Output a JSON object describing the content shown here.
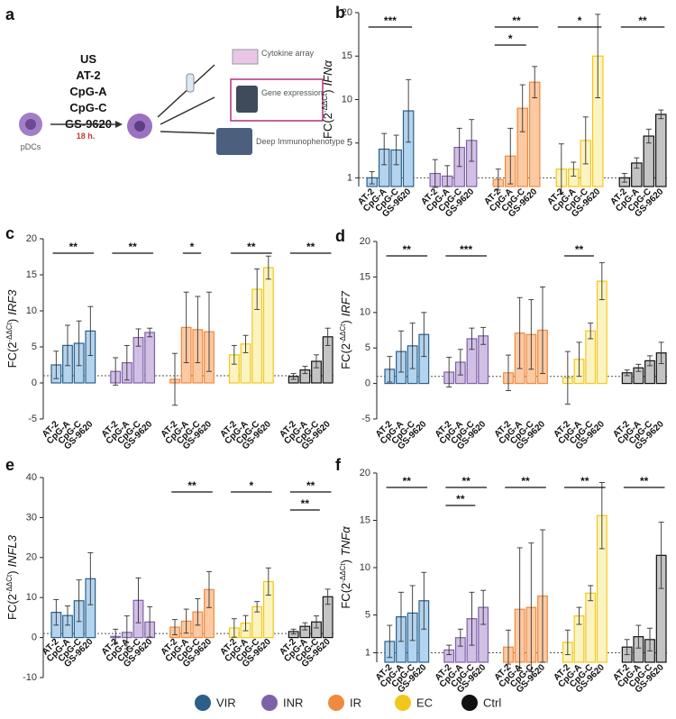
{
  "diagram": {
    "panel": "a",
    "treatments": [
      "US",
      "AT-2",
      "CpG-A",
      "CpG-C",
      "GS-9620"
    ],
    "cell": "pDCs",
    "time": "18 h.",
    "outputs": [
      "Cytokine array",
      "Gene expression",
      "Deep Immunophenotype"
    ]
  },
  "groups": [
    {
      "name": "VIR",
      "color": "#2c5f8a",
      "fill": "#b3d4ee"
    },
    {
      "name": "INR",
      "color": "#7e62a8",
      "fill": "#d2bfe5"
    },
    {
      "name": "IR",
      "color": "#ef8a3e",
      "fill": "#fbcaa3"
    },
    {
      "name": "EC",
      "color": "#f2c71c",
      "fill": "#fbf4c2"
    },
    {
      "name": "Ctrl",
      "color": "#111111",
      "fill": "#c4c4c4"
    }
  ],
  "chart_data": [
    {
      "type": "bar",
      "panel": "b",
      "ylabel": {
        "base": "FC(2",
        "sup": "-ΔΔCt",
        "close": ")",
        "gene": "IFNα"
      },
      "categories": [
        "AT-2",
        "CpG-A",
        "CpG-C",
        "GS-9620"
      ],
      "series": [
        {
          "values": [
            1,
            4.3,
            4.2,
            8.7
          ],
          "errors": [
            0.7,
            1.8,
            1.7,
            3.6
          ]
        },
        {
          "values": [
            1.5,
            1.2,
            4.5,
            5.3
          ],
          "errors": [
            1.6,
            1.2,
            2.2,
            2.4
          ]
        },
        {
          "values": [
            0.8,
            3.5,
            9,
            12
          ],
          "errors": [
            1.2,
            3.2,
            2.7,
            1.8
          ]
        },
        {
          "values": [
            2,
            2,
            5.3,
            15
          ],
          "errors": [
            2.9,
            0.8,
            2.7,
            4.8
          ]
        },
        {
          "values": [
            1,
            2.7,
            5.8,
            8.3
          ],
          "errors": [
            0.5,
            0.6,
            0.8,
            0.5
          ]
        }
      ],
      "ylim": [
        0,
        20
      ],
      "yticks": [
        1,
        5,
        10,
        15,
        20
      ],
      "refline": 1,
      "annotations": [
        {
          "label": "***",
          "series": 0,
          "from": 0,
          "to": 3
        },
        {
          "label": "**",
          "series": 2,
          "from": 0,
          "to": 3
        },
        {
          "label": "*",
          "series": 2,
          "from": 0,
          "to": 2
        },
        {
          "label": "*",
          "series": 3,
          "from": 0,
          "to": 3
        },
        {
          "label": "**",
          "series": 4,
          "from": 0,
          "to": 3
        }
      ]
    },
    {
      "type": "bar",
      "panel": "c",
      "ylabel": {
        "base": "FC(2",
        "sup": "-ΔΔCt",
        "close": ")",
        "gene": "IRF3"
      },
      "categories": [
        "AT-2",
        "CpG-A",
        "CpG-C",
        "GS-9620"
      ],
      "series": [
        {
          "values": [
            2.5,
            5.2,
            5.5,
            7.2
          ],
          "errors": [
            1.9,
            2.8,
            3.1,
            3.4
          ]
        },
        {
          "values": [
            1.6,
            2.8,
            6.3,
            7
          ],
          "errors": [
            1.9,
            2.4,
            1.2,
            0.6
          ]
        },
        {
          "values": [
            0.5,
            7.7,
            7.4,
            7.1
          ],
          "errors": [
            3.6,
            4.9,
            4.6,
            5.5
          ]
        },
        {
          "values": [
            3.9,
            5.4,
            13,
            16
          ],
          "errors": [
            1.3,
            1.2,
            2.8,
            1.6
          ]
        },
        {
          "values": [
            0.9,
            1.8,
            3,
            6.4
          ],
          "errors": [
            0.4,
            0.5,
            0.9,
            1.2
          ]
        }
      ],
      "ylim": [
        -5,
        20
      ],
      "yticks": [
        -5,
        0,
        5,
        10,
        15,
        20
      ],
      "refline": 1,
      "annotations": [
        {
          "label": "**",
          "series": 0,
          "from": 0,
          "to": 3
        },
        {
          "label": "**",
          "series": 1,
          "from": 0,
          "to": 3
        },
        {
          "label": "*",
          "series": 2,
          "from": 1,
          "to": 2
        },
        {
          "label": "**",
          "series": 3,
          "from": 0,
          "to": 3
        },
        {
          "label": "**",
          "series": 4,
          "from": 0,
          "to": 3
        }
      ]
    },
    {
      "type": "bar",
      "panel": "d",
      "ylabel": {
        "base": "FC(2",
        "sup": "-ΔΔCt",
        "close": ")",
        "gene": "IRF7"
      },
      "categories": [
        "AT-2",
        "CpG-A",
        "CpG-C",
        "GS-9620"
      ],
      "series": [
        {
          "values": [
            2,
            4.5,
            5.3,
            6.9
          ],
          "errors": [
            1.8,
            2.9,
            3.2,
            3.1
          ]
        },
        {
          "values": [
            1.6,
            3,
            6.3,
            6.7
          ],
          "errors": [
            2.1,
            1.8,
            1.5,
            1.2
          ]
        },
        {
          "values": [
            1.5,
            7.1,
            6.9,
            7.5
          ],
          "errors": [
            2.5,
            5,
            4.9,
            6.1
          ]
        },
        {
          "values": [
            0.8,
            3.4,
            7.4,
            14.4
          ],
          "errors": [
            3.7,
            2.4,
            1.1,
            2.6
          ]
        },
        {
          "values": [
            1.5,
            2.2,
            3.2,
            4.3
          ],
          "errors": [
            0.4,
            0.5,
            0.7,
            1.5
          ]
        }
      ],
      "ylim": [
        -5,
        20
      ],
      "yticks": [
        -5,
        0,
        5,
        10,
        15,
        20
      ],
      "refline": 1,
      "annotations": [
        {
          "label": "**",
          "series": 0,
          "from": 0,
          "to": 3
        },
        {
          "label": "***",
          "series": 1,
          "from": 0,
          "to": 3
        },
        {
          "label": "**",
          "series": 3,
          "from": 0,
          "to": 2
        }
      ]
    },
    {
      "type": "bar",
      "panel": "e",
      "ylabel": {
        "base": "FC(2",
        "sup": "-ΔΔCt",
        "close": ")",
        "gene": "INFL3"
      },
      "categories": [
        "AT-2",
        "CpG-A",
        "CpG-C",
        "GS-9620"
      ],
      "series": [
        {
          "values": [
            6.3,
            5.5,
            9.2,
            14.7
          ],
          "errors": [
            3.2,
            2.4,
            5.2,
            6.5
          ]
        },
        {
          "values": [
            0.3,
            1.3,
            9.3,
            3.9
          ],
          "errors": [
            1.8,
            4.1,
            5.6,
            3.8
          ]
        },
        {
          "values": [
            2.6,
            4.1,
            6.4,
            12
          ],
          "errors": [
            1.9,
            3,
            3.3,
            4.5
          ]
        },
        {
          "values": [
            2.4,
            3.6,
            7.7,
            14
          ],
          "errors": [
            2.3,
            1.9,
            1.3,
            3.4
          ]
        },
        {
          "values": [
            1.5,
            2.8,
            3.9,
            10.2
          ],
          "errors": [
            0.6,
            0.9,
            1.5,
            1.9
          ]
        }
      ],
      "ylim": [
        -10,
        40
      ],
      "yticks": [
        -10,
        0,
        10,
        20,
        30,
        40
      ],
      "refline": 1,
      "annotations": [
        {
          "label": "**",
          "series": 2,
          "from": 0,
          "to": 3
        },
        {
          "label": "*",
          "series": 3,
          "from": 0,
          "to": 3
        },
        {
          "label": "**",
          "series": 4,
          "from": 0,
          "to": 3
        },
        {
          "label": "**",
          "series": 4,
          "from": 0,
          "to": 2
        }
      ]
    },
    {
      "type": "bar",
      "panel": "f",
      "ylabel": {
        "base": "FC(2",
        "sup": "-ΔΔCt",
        "close": ")",
        "gene": "TNFα"
      },
      "categories": [
        "AT-2",
        "CpG-A",
        "CpG-C",
        "GS-9620"
      ],
      "series": [
        {
          "values": [
            2.2,
            4.8,
            5.2,
            6.5
          ],
          "errors": [
            1.7,
            2.6,
            2.9,
            3
          ]
        },
        {
          "values": [
            1.3,
            2.6,
            4.6,
            5.8
          ],
          "errors": [
            0.5,
            0.9,
            2.8,
            1.8
          ]
        },
        {
          "values": [
            1.6,
            5.6,
            5.8,
            7
          ],
          "errors": [
            1.8,
            6.5,
            6.8,
            7
          ]
        },
        {
          "values": [
            2.1,
            4.9,
            7.3,
            15.5
          ],
          "errors": [
            1.3,
            0.9,
            0.8,
            3.5
          ]
        },
        {
          "values": [
            1.6,
            2.7,
            2.4,
            11.3
          ],
          "errors": [
            0.8,
            1.2,
            1.2,
            3.5
          ]
        }
      ],
      "ylim": [
        0,
        20
      ],
      "yticks": [
        1,
        5,
        10,
        15,
        20
      ],
      "refline": 1,
      "annotations": [
        {
          "label": "**",
          "series": 0,
          "from": 0,
          "to": 3
        },
        {
          "label": "**",
          "series": 1,
          "from": 0,
          "to": 3
        },
        {
          "label": "**",
          "series": 1,
          "from": 0,
          "to": 2
        },
        {
          "label": "**",
          "series": 2,
          "from": 0,
          "to": 3
        },
        {
          "label": "**",
          "series": 3,
          "from": 0,
          "to": 3
        },
        {
          "label": "**",
          "series": 4,
          "from": 0,
          "to": 3
        }
      ]
    }
  ]
}
